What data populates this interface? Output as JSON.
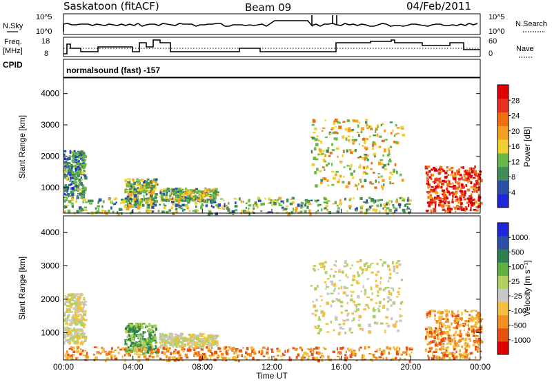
{
  "header": {
    "station": "Saskatoon (fitACF)",
    "beam": "Beam 09",
    "date": "04/Feb/2011"
  },
  "params": {
    "nsky_label": "N.Sky",
    "nsky_ticks": [
      "10^5",
      "10^0"
    ],
    "nsearch_label": "N.Search",
    "nsearch_ticks": [
      "10^5",
      "10^0"
    ],
    "freq_label_1": "Freq.",
    "freq_label_2": "[MHz]",
    "freq_ticks": [
      "18",
      "8"
    ],
    "nave_label": "Nave",
    "nave_ticks": [
      "60",
      "0"
    ],
    "cpid_label": "CPID",
    "cpid_text": "normalsound (fast) -157"
  },
  "colors": {
    "power": [
      "#1f28d8",
      "#2c4fa8",
      "#3f8e58",
      "#6bb84a",
      "#f0d030",
      "#f5a020",
      "#f07010",
      "#e83020",
      "#e00000"
    ],
    "velocity": [
      "#e00000",
      "#e85010",
      "#f09020",
      "#f5c040",
      "#c8c8c8",
      "#b0d060",
      "#60b040",
      "#2c8050",
      "#2c50a8",
      "#1f28d8"
    ]
  },
  "chart_data": [
    {
      "type": "heatmap",
      "panel": "power",
      "ylabel": "Slant Range [km]",
      "ylim": [
        180,
        4500
      ],
      "yticks": [
        "1000",
        "2000",
        "3000",
        "4000"
      ],
      "xlim": [
        0,
        24
      ],
      "colorbar_label": "Power [dB]",
      "colorbar_ticks": [
        "4",
        "8",
        "12",
        "16",
        "20",
        "24",
        "28"
      ],
      "colorbar_range": [
        0,
        30
      ],
      "regions": [
        {
          "t": [
            0.0,
            1.2
          ],
          "r": [
            700,
            2200
          ],
          "v": 8
        },
        {
          "t": [
            3.5,
            5.3
          ],
          "r": [
            400,
            1300
          ],
          "v": 12
        },
        {
          "t": [
            5.5,
            8.8
          ],
          "r": [
            600,
            1000
          ],
          "v": 10
        },
        {
          "t": [
            14.2,
            19.5
          ],
          "r": [
            1000,
            3200
          ],
          "v": 16
        },
        {
          "t": [
            20.8,
            24.0
          ],
          "r": [
            250,
            1700
          ],
          "v": 26
        },
        {
          "t": [
            0.0,
            20.0
          ],
          "r": [
            180,
            700
          ],
          "v": 12
        }
      ]
    },
    {
      "type": "heatmap",
      "panel": "velocity",
      "ylabel": "Slant Range [km]",
      "ylim": [
        180,
        4500
      ],
      "yticks": [
        "1000",
        "2000",
        "3000",
        "4000"
      ],
      "xlim": [
        0,
        24
      ],
      "xticks": [
        "00:00",
        "04:00",
        "08:00",
        "12:00",
        "16:00",
        "20:00",
        "00:00"
      ],
      "xlabel": "Time UT",
      "colorbar_label": "Velocity [m s⁻¹]",
      "colorbar_ticks": [
        "-1000",
        "-500",
        "-100",
        "-25",
        "25",
        "100",
        "500",
        "1000"
      ],
      "regions": [
        {
          "t": [
            0.0,
            1.2
          ],
          "r": [
            700,
            2200
          ],
          "v": 0
        },
        {
          "t": [
            3.5,
            5.3
          ],
          "r": [
            400,
            1300
          ],
          "v": 80
        },
        {
          "t": [
            5.5,
            8.8
          ],
          "r": [
            600,
            1000
          ],
          "v": 10
        },
        {
          "t": [
            14.2,
            19.5
          ],
          "r": [
            1000,
            3200
          ],
          "v": 20
        },
        {
          "t": [
            20.8,
            24.0
          ],
          "r": [
            250,
            1700
          ],
          "v": -90
        },
        {
          "t": [
            0.0,
            20.0
          ],
          "r": [
            180,
            600
          ],
          "v": -50
        }
      ]
    }
  ]
}
